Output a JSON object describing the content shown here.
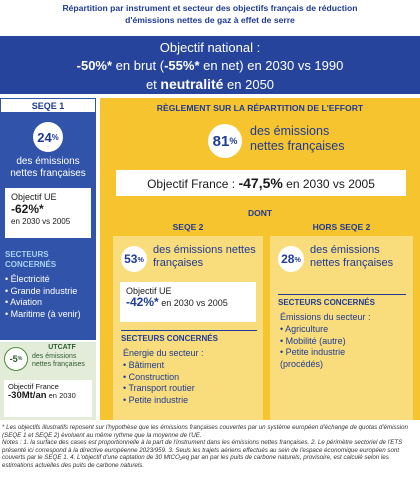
{
  "title": [
    "Répartition par instrument et secteur des objectifs français de réduction",
    "d'émissions nettes de gaz à effet de serre"
  ],
  "national": {
    "heading": "Objectif national :",
    "line1": [
      "-50%*",
      " en brut (",
      "-55%*",
      " en net) en 2030 vs 1990"
    ],
    "line2": [
      "et ",
      "neutralité",
      " en 2050"
    ]
  },
  "seqe1": {
    "label": "SEQE 1",
    "share": "24",
    "unit": "%",
    "share_text": "des émissions nettes françaises",
    "goal_label": "Objectif UE",
    "goal_value": "-62%*",
    "goal_period": "en 2030 vs 2005",
    "sectors_title": "SECTEURS CONCERNÉS",
    "sectors": [
      "Électricité",
      "Grande industrie",
      "Aviation",
      "Maritime (à venir)"
    ]
  },
  "utcatf": {
    "share": "-5",
    "unit": "%",
    "label": "UTCATF",
    "share_text": "des émissions nettes françaises",
    "goal_label": "Objectif France",
    "goal_value": "-30Mt/an",
    "goal_period": "en 2030"
  },
  "effort": {
    "label": "RÈGLEMENT SUR LA RÉPARTITION DE L'EFFORT",
    "share": "81",
    "unit": "%",
    "share_text": "des émissions nettes françaises",
    "goal_label": "Objectif France : ",
    "goal_value": "-47,5%",
    "goal_period": " en 2030 vs 2005",
    "dont": "DONT",
    "seqe2": {
      "label": "SEQE 2",
      "share": "53",
      "unit": "%",
      "share_text": "des émissions nettes françaises",
      "goal_label": "Objectif UE",
      "goal_value": "-42%*",
      "goal_period": " en 2030 vs 2005",
      "sectors_title": "SECTEURS CONCERNÉS",
      "energy_title": "Énergie du secteur :",
      "sectors": [
        "Bâtiment",
        "Construction",
        "Transport routier",
        "Petite industrie"
      ]
    },
    "hors_seqe2": {
      "label": "HORS SEQE 2",
      "share": "28",
      "unit": "%",
      "share_text": "des émissions nettes françaises",
      "sectors_title": "SECTEURS CONCERNÉS",
      "emissions_title": "Émissions du secteur :",
      "sectors": [
        "Agriculture",
        "Mobilité (autre)",
        "Petite industrie (procédés)"
      ]
    }
  },
  "footnotes": [
    "* Les objectifs illustratifs reposent sur l'hypothèse que les émissions françaises couvertes par un système européen d'échange de quotas d'émission (SEQE 1 et SEQE 2) évoluent au même rythme que la moyenne de l'UE.",
    "Notes : 1. la surface des cases est proportionnelle à la part de l'instrument dans les émissions nettes françaises. 2. Le périmètre sectoriel de l'ETS présenté ici correspond à la directive européenne 2023/959. 3. Seuls les trajets aériens effectués au sein de l'espace économique européen sont couverts par le SEQE 1. 4. L'objectif d'une captation de 30 MtCO₂eq par an par les puits de carbone naturels, provisoire, est calculé selon les estimations actuelles des puits de carbone naturels."
  ]
}
